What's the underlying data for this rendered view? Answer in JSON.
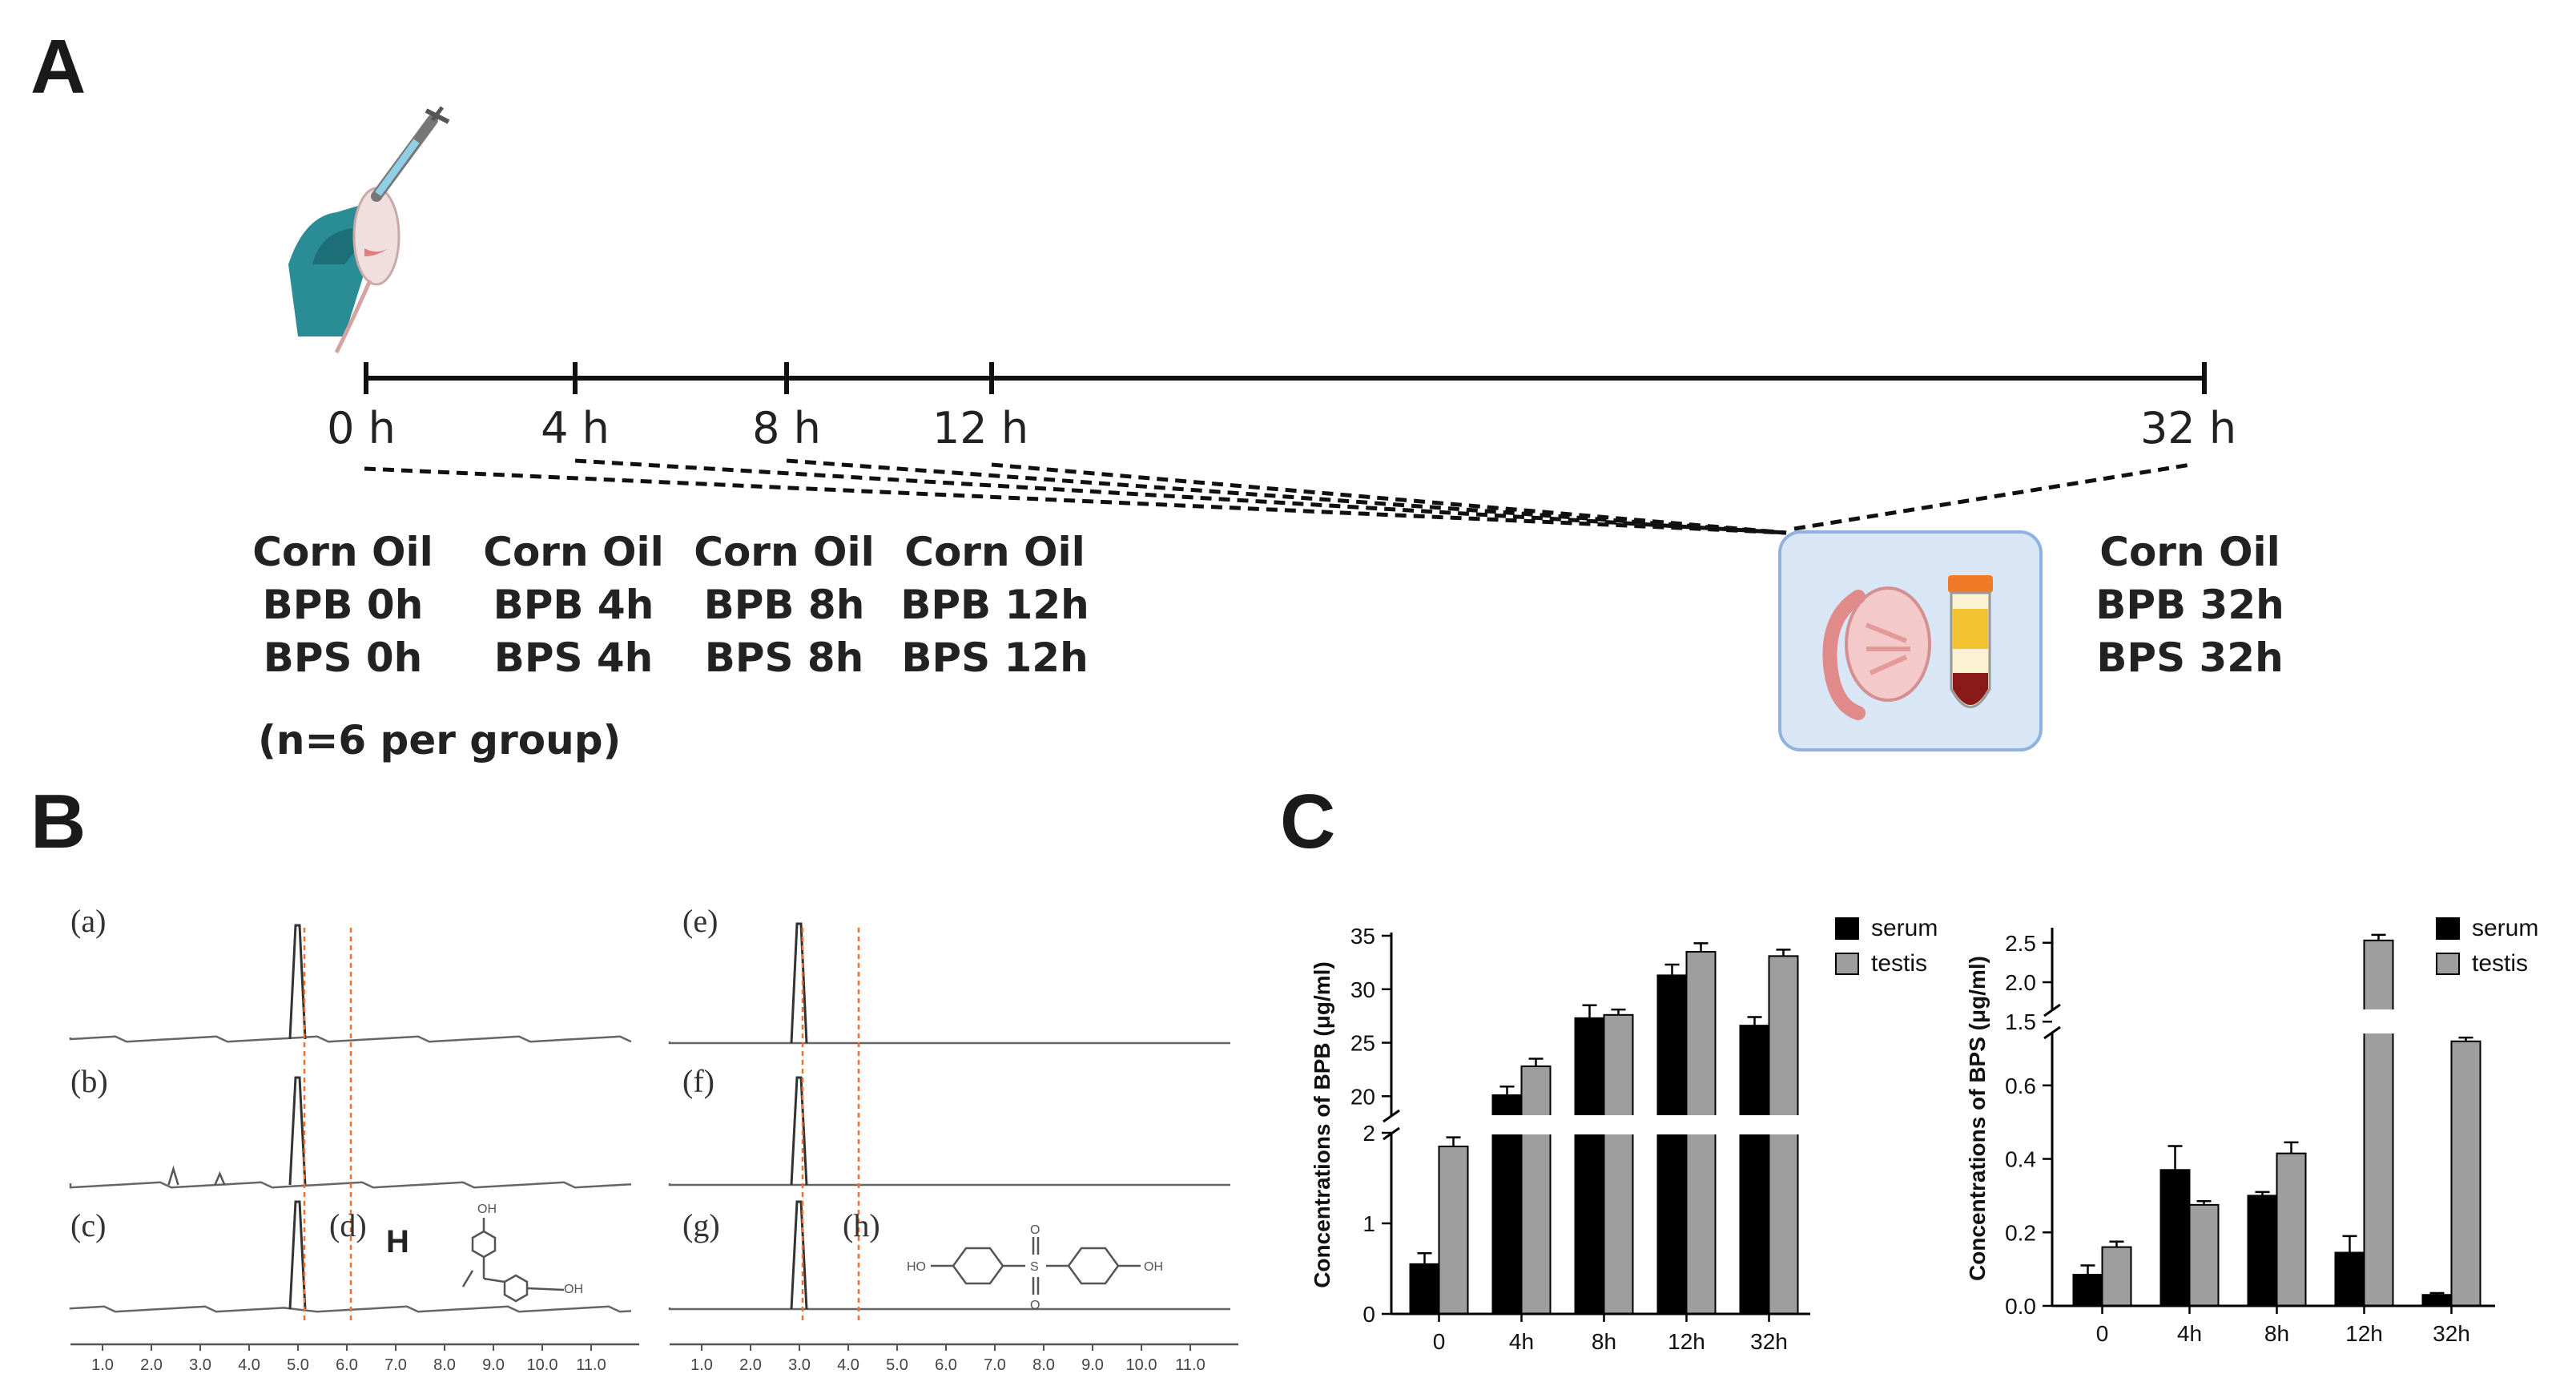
{
  "panels": {
    "a": "A",
    "b": "B",
    "c": "C"
  },
  "timeline": {
    "ticks": [
      "0 h",
      "4 h",
      "8 h",
      "12 h",
      "32 h"
    ],
    "groups": [
      [
        "Corn Oil",
        "BPB 0h",
        "BPS 0h"
      ],
      [
        "Corn Oil",
        "BPB 4h",
        "BPS 4h"
      ],
      [
        "Corn Oil",
        "BPB 8h",
        "BPS 8h"
      ],
      [
        "Corn Oil",
        "BPB 12h",
        "BPS 12h"
      ],
      [
        "Corn Oil",
        "BPB 32h",
        "BPS 32h"
      ]
    ],
    "note": "(n=6 per group)"
  },
  "chromatograms": {
    "left_labels": [
      "(a)",
      "(b)",
      "(c)",
      "(d)"
    ],
    "right_labels": [
      "(e)",
      "(f)",
      "(g)",
      "(h)"
    ],
    "h_label": "H",
    "x_ticks": [
      "1.0",
      "2.0",
      "3.0",
      "4.0",
      "5.0",
      "6.0",
      "7.0",
      "8.0",
      "9.0",
      "10.0",
      "11.0"
    ],
    "bpb_peak_min": 5.0,
    "bps_peak_min": 3.0,
    "chem_oh": "OH",
    "chem_ho": "HO",
    "chem_s": "S",
    "chem_o": "O"
  },
  "colors": {
    "serum": "#000000",
    "testis": "#9e9e9e",
    "accent": "#f07030",
    "bg": "#ffffff"
  },
  "chart_data": [
    {
      "type": "bar",
      "ylabel": "Concentrations of BPB (μg/ml)",
      "categories": [
        "0",
        "4h",
        "8h",
        "12h",
        "32h"
      ],
      "series": [
        {
          "name": "serum",
          "values": [
            0.55,
            20.1,
            27.3,
            31.3,
            26.6
          ],
          "errors": [
            0.12,
            0.8,
            1.2,
            1.0,
            0.8
          ]
        },
        {
          "name": "testis",
          "values": [
            1.85,
            22.8,
            27.6,
            33.5,
            33.1
          ],
          "errors": [
            0.1,
            0.7,
            0.5,
            0.8,
            0.6
          ]
        }
      ],
      "axis_break": {
        "lower": [
          0,
          2
        ],
        "upper": [
          18,
          35
        ]
      },
      "y_ticks": [
        "0",
        "1",
        "2",
        "20",
        "25",
        "30",
        "35"
      ],
      "legend": "top-right"
    },
    {
      "type": "bar",
      "ylabel": "Concentrations of BPS (μg/ml)",
      "categories": [
        "0",
        "4h",
        "8h",
        "12h",
        "32h"
      ],
      "series": [
        {
          "name": "serum",
          "values": [
            0.085,
            0.37,
            0.3,
            0.145,
            0.03
          ],
          "errors": [
            0.025,
            0.065,
            0.01,
            0.045,
            0.005
          ]
        },
        {
          "name": "testis",
          "values": [
            0.16,
            0.275,
            0.415,
            2.53,
            0.72
          ],
          "errors": [
            0.015,
            0.01,
            0.03,
            0.07,
            0.01
          ]
        }
      ],
      "axis_break": {
        "lower": [
          0,
          0.75
        ],
        "upper": [
          1.35,
          2.65
        ]
      },
      "y_ticks": [
        "0.0",
        "0.2",
        "0.4",
        "0.6",
        "1.5",
        "2.0",
        "2.5"
      ],
      "legend": "top-right"
    }
  ]
}
